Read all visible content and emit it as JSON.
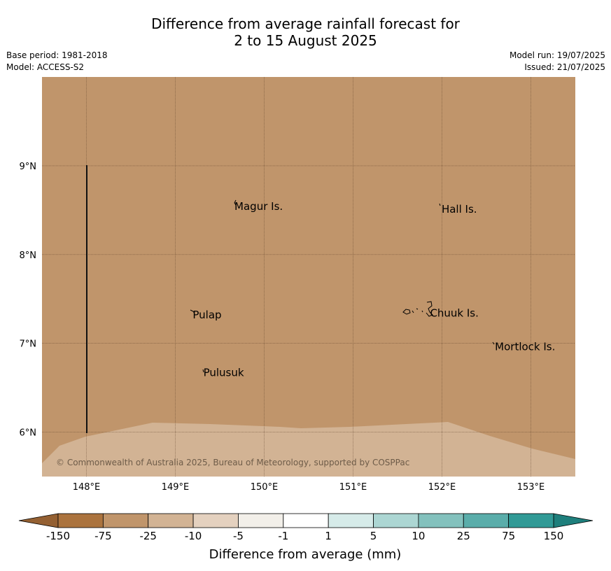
{
  "header": {
    "title_line1": "Difference from average rainfall forecast for",
    "title_line2": "2 to 15 August 2025",
    "base_period": "Base period: 1981-2018",
    "model": "Model: ACCESS-S2",
    "model_run": "Model run: 19/07/2025",
    "issued": "Issued: 21/07/2025"
  },
  "map": {
    "lon_range": [
      147.5,
      153.5
    ],
    "lat_range": [
      5.5,
      10.0
    ],
    "lon_ticks": [
      148,
      149,
      150,
      151,
      152,
      153
    ],
    "lon_tick_labels": [
      "148°E",
      "149°E",
      "150°E",
      "151°E",
      "152°E",
      "153°E"
    ],
    "lat_ticks": [
      6,
      7,
      8,
      9
    ],
    "lat_tick_labels": [
      "6°N",
      "7°N",
      "8°N",
      "9°N"
    ],
    "background_color": "#c0956b",
    "lower_band_color": "#d2b394",
    "places": [
      {
        "name": "Magur Is.",
        "lon": 149.65,
        "lat": 8.55
      },
      {
        "name": "Hall Is.",
        "lon": 151.98,
        "lat": 8.52
      },
      {
        "name": "Pulap",
        "lon": 149.18,
        "lat": 7.33
      },
      {
        "name": "Chuuk Is.",
        "lon": 151.85,
        "lat": 7.35
      },
      {
        "name": "Mortlock Is.",
        "lon": 152.58,
        "lat": 6.97
      },
      {
        "name": "Pulusuk",
        "lon": 149.3,
        "lat": 6.68
      }
    ],
    "copyright": "© Commonwealth of Australia 2025, Bureau of Meteorology, supported by COSPPac"
  },
  "colorbar": {
    "title": "Difference from average (mm)",
    "labels": [
      "-150",
      "-75",
      "-25",
      "-10",
      "-5",
      "-1",
      "1",
      "5",
      "10",
      "25",
      "75",
      "150"
    ],
    "colors": [
      "#ab733e",
      "#c0956b",
      "#d2b394",
      "#e4d1bf",
      "#f2efe9",
      "#ffffff",
      "#d6ebe9",
      "#acd6d3",
      "#83c1bd",
      "#5aadaa",
      "#319a96"
    ],
    "under_color": "#946032",
    "over_color": "#1e7f7c"
  }
}
